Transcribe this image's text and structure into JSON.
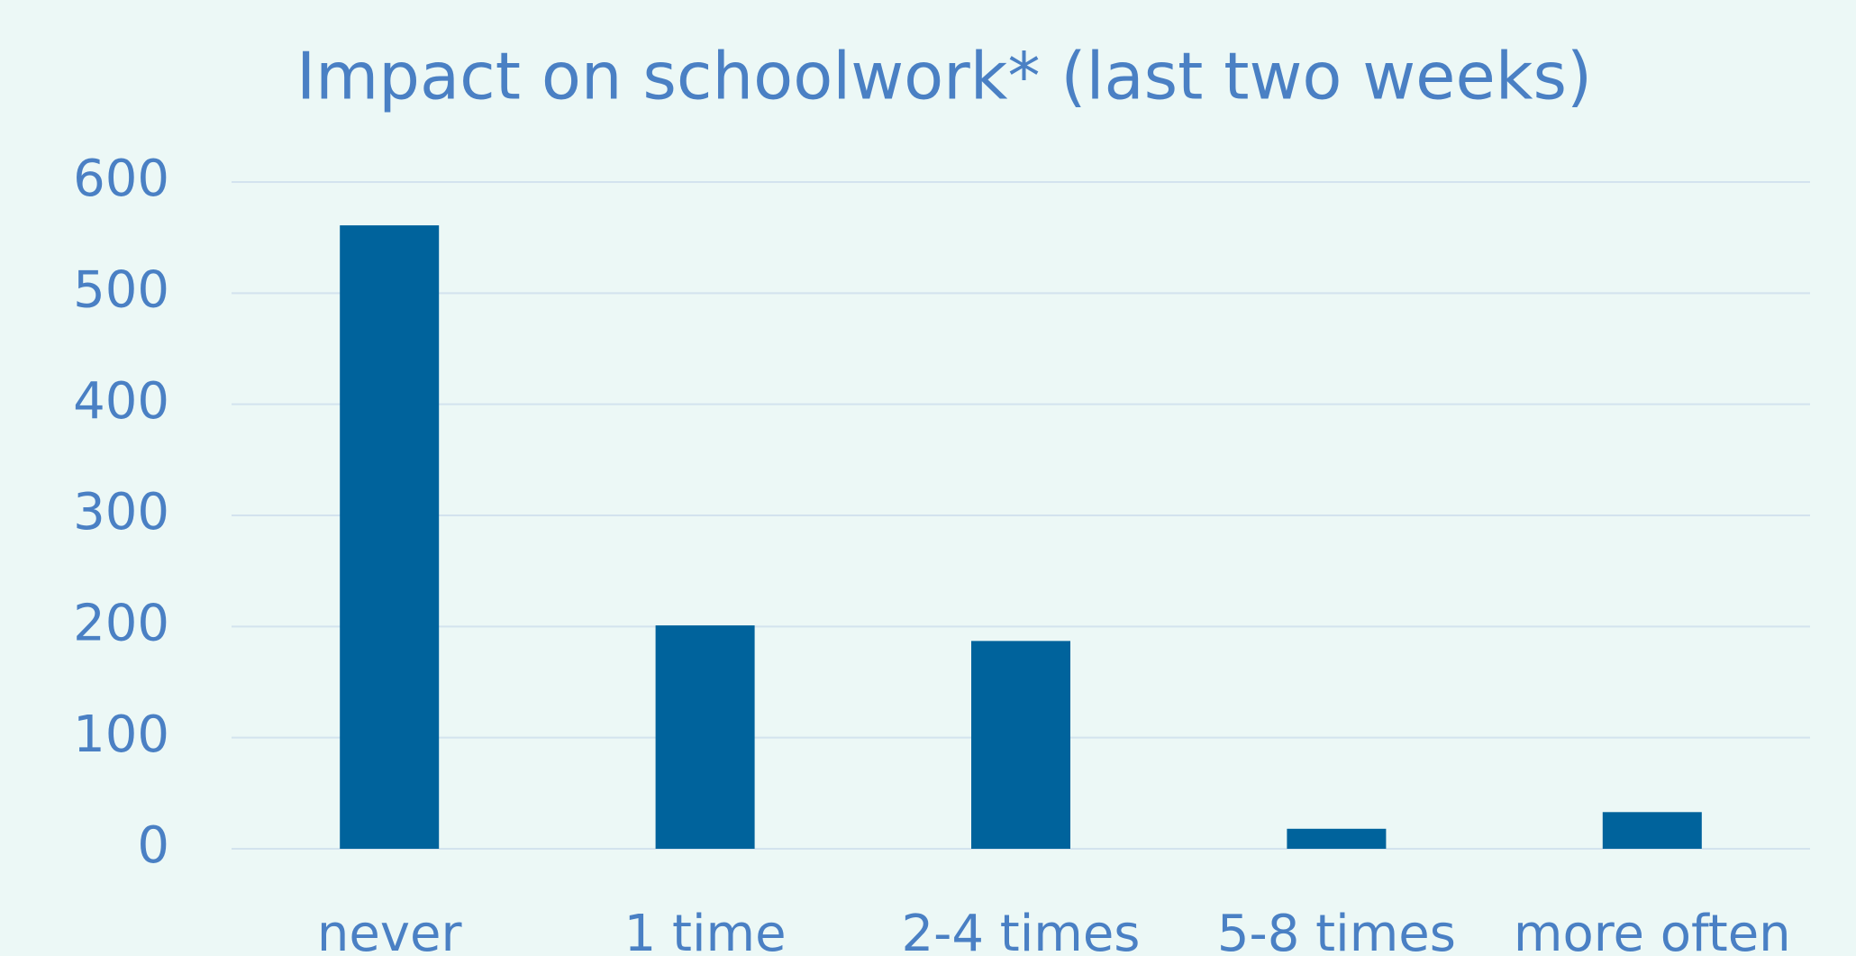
{
  "chart_data": {
    "type": "bar",
    "title": "Impact on schoolwork* (last two weeks)",
    "categories": [
      "never",
      "1 time",
      "2-4 times",
      "5-8 times",
      "more often"
    ],
    "values": [
      561,
      201,
      187,
      18,
      33
    ],
    "color": "#00639c",
    "ylim": [
      0,
      600
    ],
    "yticks": [
      0,
      100,
      200,
      300,
      400,
      500,
      600
    ],
    "grid": true
  }
}
